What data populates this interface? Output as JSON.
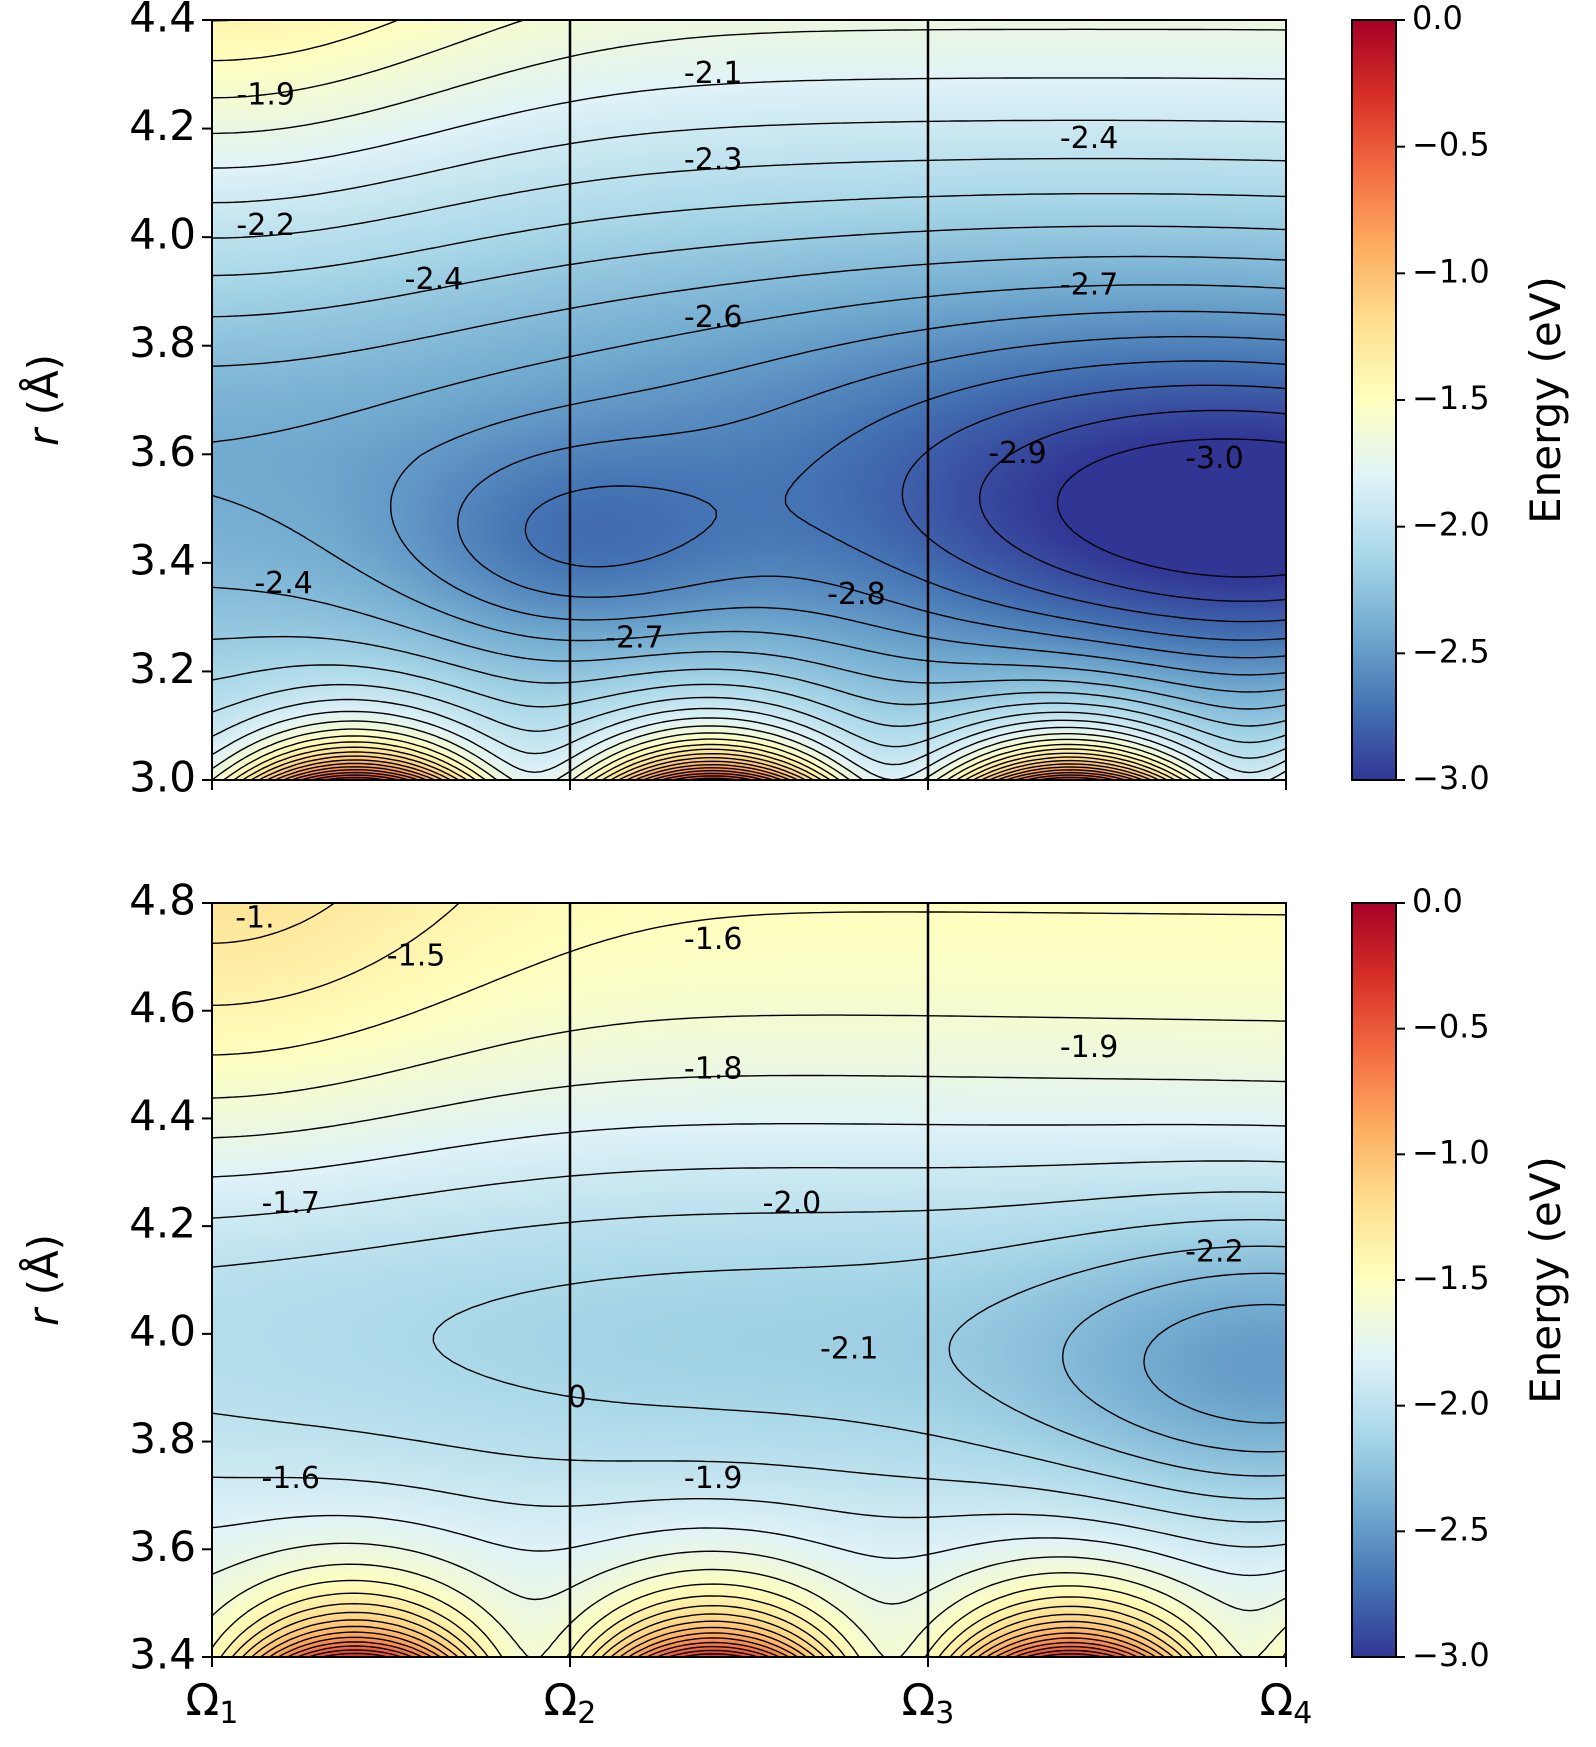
{
  "chart_data": [
    {
      "type": "heatmap",
      "subtype": "filled contour",
      "panel": "top",
      "xlabel": "",
      "ylabel": "r (Å)",
      "xticks": [
        "Ω1",
        "Ω2",
        "Ω3",
        "Ω4"
      ],
      "yticks": [
        "3.0",
        "3.2",
        "3.4",
        "3.6",
        "3.8",
        "4.0",
        "4.2",
        "4.4"
      ],
      "ylim": [
        3.0,
        4.4
      ],
      "colorbar": {
        "label": "Energy (eV)",
        "ticks": [
          "0.0",
          "−0.5",
          "−1.0",
          "−1.5",
          "−2.0",
          "−2.5",
          "−3.0"
        ],
        "vmin": -3.0,
        "vmax": 0.0,
        "colormap": "RdYlBu_r"
      },
      "vertical_lines_at": [
        "Ω2",
        "Ω3"
      ],
      "contour_labels": [
        {
          "text": "-1.9",
          "x": 0.15,
          "r": 4.26
        },
        {
          "text": "-2.1",
          "x": 1.4,
          "r": 4.3
        },
        {
          "text": "-2.3",
          "x": 1.4,
          "r": 4.14
        },
        {
          "text": "-2.4",
          "x": 2.45,
          "r": 4.18
        },
        {
          "text": "-2.2",
          "x": 0.15,
          "r": 4.02
        },
        {
          "text": "-2.4",
          "x": 0.62,
          "r": 3.92
        },
        {
          "text": "-2.6",
          "x": 1.4,
          "r": 3.85
        },
        {
          "text": "-2.7",
          "x": 2.45,
          "r": 3.91
        },
        {
          "text": "-2.9",
          "x": 2.25,
          "r": 3.6
        },
        {
          "text": "-3.0",
          "x": 2.8,
          "r": 3.59
        },
        {
          "text": "-2.4",
          "x": 0.2,
          "r": 3.36
        },
        {
          "text": "-2.7",
          "x": 1.18,
          "r": 3.26
        },
        {
          "text": "-2.8",
          "x": 1.8,
          "r": 3.34
        }
      ],
      "estimated_minima": [
        {
          "x": 1.0,
          "r": 3.43,
          "energy": -2.75
        },
        {
          "x": 3.0,
          "r": 3.45,
          "energy": -3.0
        }
      ]
    },
    {
      "type": "heatmap",
      "subtype": "filled contour",
      "panel": "bottom",
      "xlabel": "",
      "ylabel": "r (Å)",
      "xticks": [
        "Ω1",
        "Ω2",
        "Ω3",
        "Ω4"
      ],
      "yticks": [
        "3.4",
        "3.6",
        "3.8",
        "4.0",
        "4.2",
        "4.4",
        "4.6",
        "4.8"
      ],
      "ylim": [
        3.4,
        4.8
      ],
      "colorbar": {
        "label": "Energy (eV)",
        "ticks": [
          "0.0",
          "−0.5",
          "−1.0",
          "−1.5",
          "−2.0",
          "−2.5",
          "−3.0"
        ],
        "vmin": -3.0,
        "vmax": 0.0,
        "colormap": "RdYlBu_r"
      },
      "vertical_lines_at": [
        "Ω2",
        "Ω3"
      ],
      "contour_labels": [
        {
          "text": "-1.",
          "x": 0.12,
          "r": 4.77
        },
        {
          "text": "-1.5",
          "x": 0.57,
          "r": 4.7
        },
        {
          "text": "-1.6",
          "x": 1.4,
          "r": 4.73
        },
        {
          "text": "-1.8",
          "x": 1.4,
          "r": 4.49
        },
        {
          "text": "-1.9",
          "x": 2.45,
          "r": 4.53
        },
        {
          "text": "-1.7",
          "x": 0.22,
          "r": 4.24
        },
        {
          "text": "-2.0",
          "x": 1.62,
          "r": 4.24
        },
        {
          "text": "-2.2",
          "x": 2.8,
          "r": 4.15
        },
        {
          "text": "-2.1",
          "x": 1.78,
          "r": 3.97
        },
        {
          "text": "-1.6",
          "x": 0.22,
          "r": 3.73
        },
        {
          "text": "-1.9",
          "x": 1.4,
          "r": 3.73
        },
        {
          "text": "0",
          "x": 1.02,
          "r": 3.88
        }
      ],
      "estimated_minima": [
        {
          "x": 3.0,
          "r": 3.92,
          "energy": -2.3
        }
      ]
    }
  ]
}
